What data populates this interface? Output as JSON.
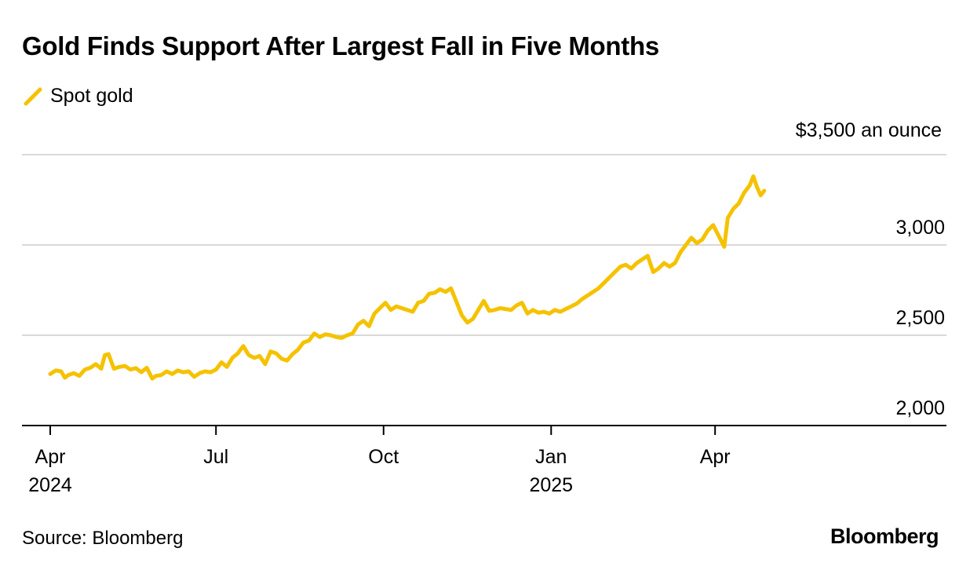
{
  "header": {
    "title": "Gold Finds Support After Largest Fall in Five Months",
    "legend_label": "Spot gold",
    "unit_label": "$3,500 an ounce"
  },
  "footer": {
    "source": "Source: Bloomberg",
    "brand": "Bloomberg"
  },
  "colors": {
    "series": "#F5C200",
    "grid": "#d9d9d9",
    "axis": "#000000"
  },
  "chart_data": {
    "type": "line",
    "title": "Gold Finds Support After Largest Fall in Five Months",
    "ylabel": "$ an ounce",
    "ylim": [
      2000,
      3500
    ],
    "y_ticks": [
      {
        "value": 3000,
        "label": "3,000"
      },
      {
        "value": 2500,
        "label": "2,500"
      },
      {
        "value": 2000,
        "label": "2,000"
      }
    ],
    "x_domain": [
      0,
      433
    ],
    "x_ticks": [
      {
        "x": 0,
        "label": "Apr",
        "year": "2024"
      },
      {
        "x": 91,
        "label": "Jul",
        "year": ""
      },
      {
        "x": 183,
        "label": "Oct",
        "year": ""
      },
      {
        "x": 275,
        "label": "Jan",
        "year": "2025"
      },
      {
        "x": 365,
        "label": "Apr",
        "year": ""
      }
    ],
    "series": [
      {
        "name": "Spot gold",
        "x": [
          0,
          3,
          6,
          8,
          10,
          13,
          16,
          19,
          22,
          25,
          28,
          30,
          32,
          35,
          38,
          41,
          44,
          47,
          50,
          53,
          56,
          58,
          61,
          64,
          67,
          70,
          73,
          76,
          79,
          82,
          85,
          88,
          91,
          94,
          97,
          100,
          103,
          106,
          109,
          112,
          115,
          118,
          121,
          124,
          127,
          130,
          133,
          136,
          139,
          142,
          145,
          148,
          151,
          154,
          157,
          160,
          163,
          166,
          169,
          172,
          175,
          178,
          181,
          184,
          187,
          190,
          193,
          196,
          199,
          202,
          205,
          208,
          211,
          214,
          217,
          220,
          223,
          226,
          229,
          232,
          235,
          238,
          241,
          244,
          247,
          250,
          253,
          256,
          259,
          262,
          265,
          268,
          271,
          274,
          277,
          280,
          283,
          286,
          289,
          292,
          295,
          298,
          301,
          304,
          307,
          310,
          313,
          316,
          319,
          322,
          325,
          328,
          331,
          334,
          337,
          340,
          343,
          346,
          349,
          352,
          355,
          358,
          361,
          364,
          367,
          370,
          372,
          375,
          378,
          381,
          384,
          386,
          388,
          390,
          392
        ],
        "values": [
          2285,
          2305,
          2300,
          2265,
          2280,
          2290,
          2275,
          2310,
          2320,
          2340,
          2315,
          2390,
          2395,
          2315,
          2325,
          2330,
          2310,
          2318,
          2295,
          2320,
          2260,
          2275,
          2280,
          2300,
          2285,
          2305,
          2295,
          2300,
          2270,
          2290,
          2300,
          2295,
          2310,
          2350,
          2325,
          2375,
          2400,
          2440,
          2390,
          2375,
          2385,
          2340,
          2410,
          2400,
          2370,
          2360,
          2395,
          2420,
          2460,
          2470,
          2510,
          2490,
          2505,
          2500,
          2490,
          2485,
          2500,
          2510,
          2560,
          2580,
          2550,
          2620,
          2650,
          2680,
          2640,
          2660,
          2650,
          2640,
          2630,
          2680,
          2690,
          2730,
          2735,
          2755,
          2740,
          2760,
          2685,
          2610,
          2570,
          2590,
          2640,
          2690,
          2635,
          2640,
          2650,
          2645,
          2640,
          2665,
          2680,
          2620,
          2640,
          2625,
          2630,
          2620,
          2640,
          2630,
          2645,
          2660,
          2675,
          2700,
          2720,
          2740,
          2760,
          2790,
          2820,
          2850,
          2880,
          2890,
          2870,
          2900,
          2920,
          2940,
          2850,
          2870,
          2900,
          2880,
          2900,
          2960,
          3000,
          3040,
          3010,
          3030,
          3080,
          3110,
          3050,
          2990,
          3150,
          3200,
          3230,
          3290,
          3330,
          3380,
          3320,
          3275,
          3300
        ]
      }
    ]
  }
}
